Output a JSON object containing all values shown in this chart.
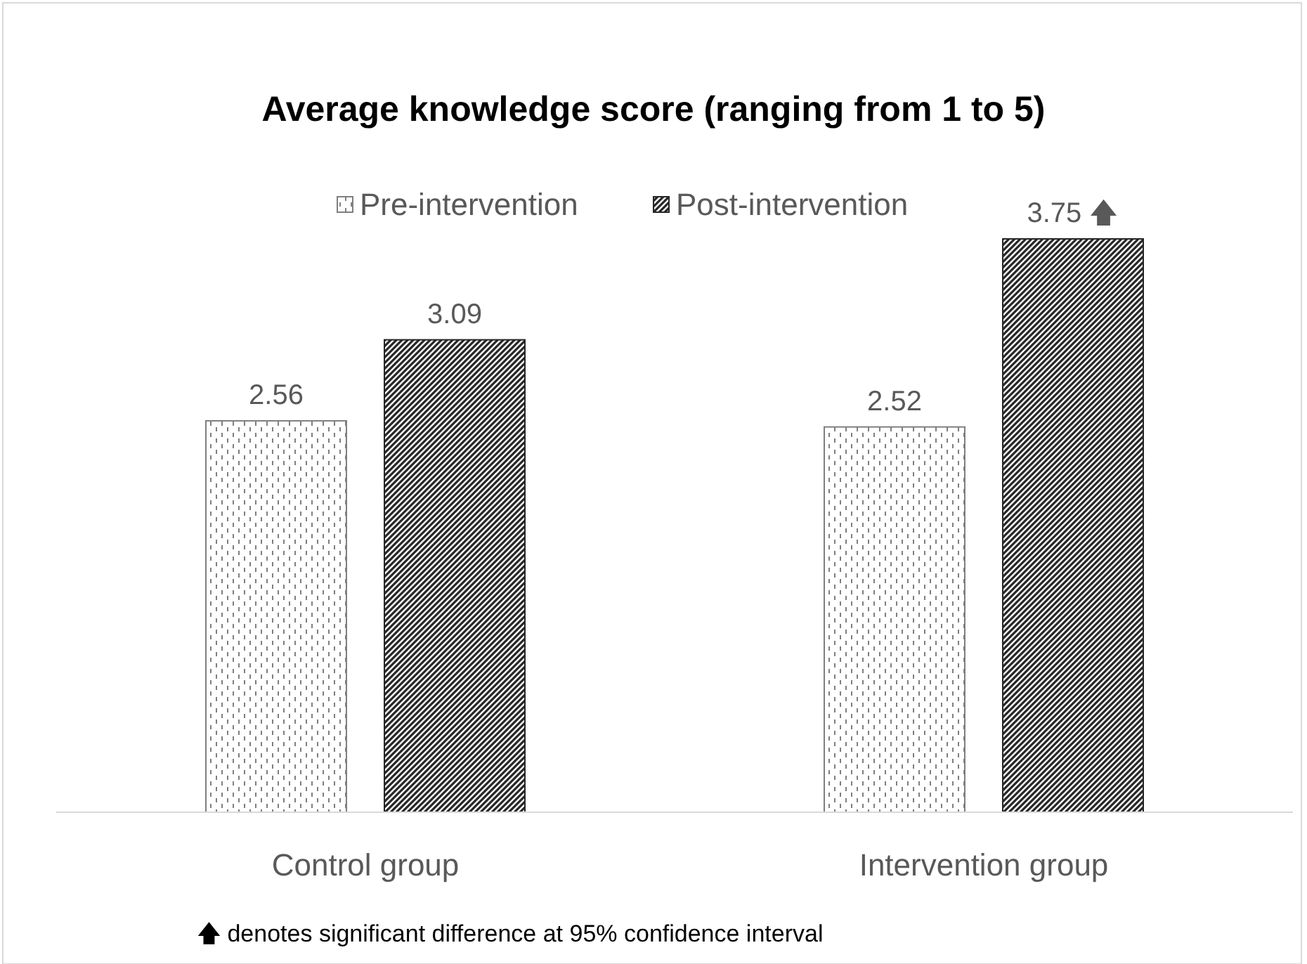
{
  "chart_data": {
    "type": "bar",
    "title": "Average knowledge score (ranging from 1 to 5)",
    "categories": [
      "Control group",
      "Intervention group"
    ],
    "series": [
      {
        "name": "Pre-intervention",
        "color": "#7f7f7f",
        "values": [
          2.56,
          2.52
        ],
        "value_labels": [
          "2.56",
          "2.52"
        ]
      },
      {
        "name": "Post-intervention",
        "color": "#262626",
        "values": [
          3.09,
          3.75
        ],
        "value_labels": [
          "3.09",
          "3.75 🡅"
        ]
      }
    ],
    "tick_labels": "x",
    "legend": "top",
    "annotations": [
      "🡅 denotes significant difference at 95% confidence interval"
    ]
  }
}
